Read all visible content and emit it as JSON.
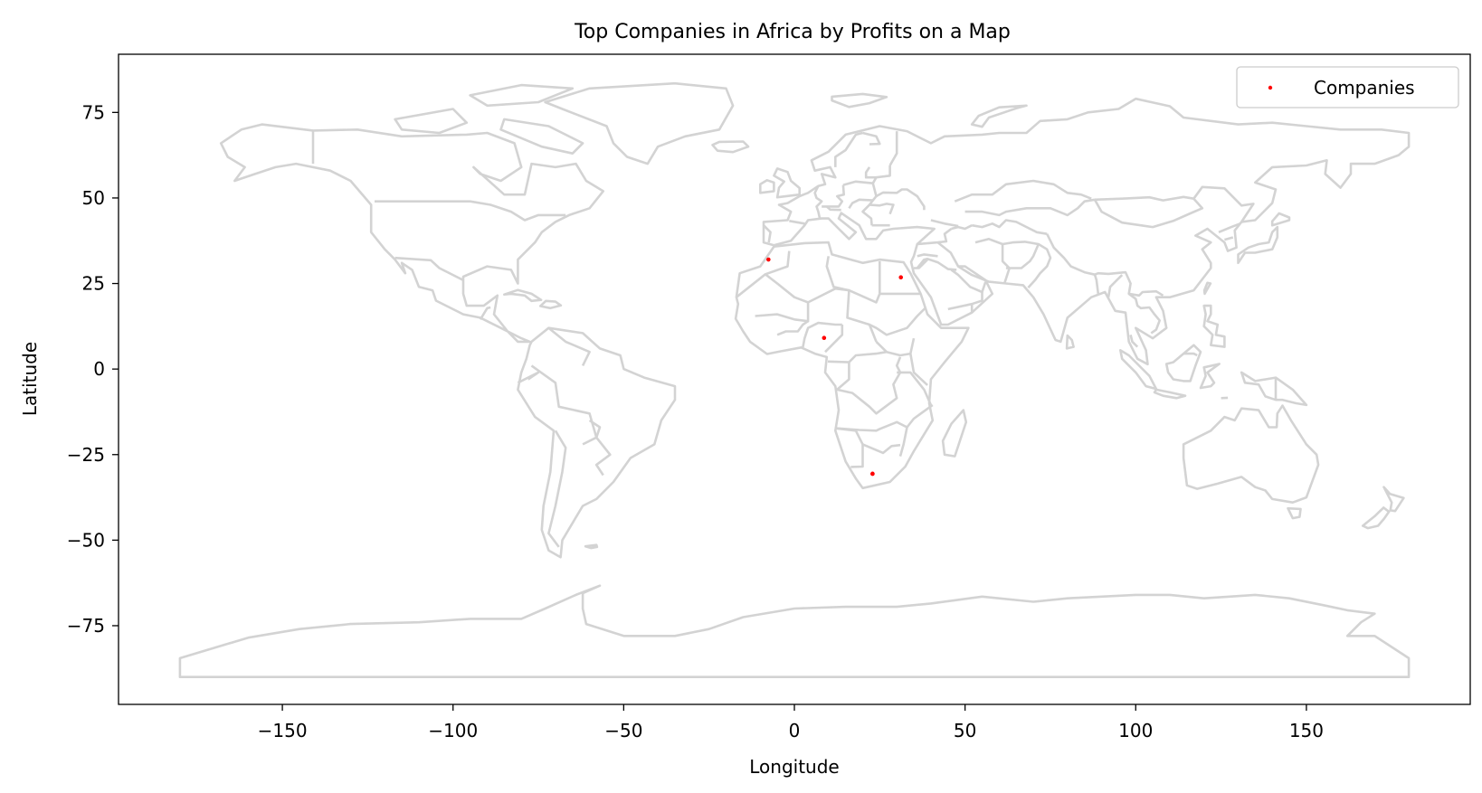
{
  "chart_data": {
    "type": "scatter",
    "title": "Top Companies in Africa by Profits on a Map",
    "xlabel": "Longitude",
    "ylabel": "Latitude",
    "xlim": [
      -198,
      198
    ],
    "ylim": [
      -98,
      92
    ],
    "xticks": [
      -150,
      -100,
      -50,
      0,
      50,
      100,
      150
    ],
    "yticks": [
      75,
      50,
      25,
      0,
      -25,
      -50,
      -75
    ],
    "xtick_labels": [
      "−150",
      "−100",
      "−50",
      "0",
      "50",
      "100",
      "150"
    ],
    "ytick_labels": [
      "75",
      "50",
      "25",
      "0",
      "−25",
      "−50",
      "−75"
    ],
    "grid": false,
    "legend": {
      "placement": "top-right",
      "entries": [
        "Companies"
      ]
    },
    "basemap_color": "#d3d3d3",
    "series": [
      {
        "name": "Companies",
        "color": "#ff0000",
        "points": [
          {
            "lon": -7.6,
            "lat": 32.0
          },
          {
            "lon": 31.2,
            "lat": 26.8
          },
          {
            "lon": 8.7,
            "lat": 9.1
          },
          {
            "lon": 22.9,
            "lat": -30.6
          },
          {
            "lon": 22.9,
            "lat": -30.6
          }
        ]
      }
    ]
  }
}
